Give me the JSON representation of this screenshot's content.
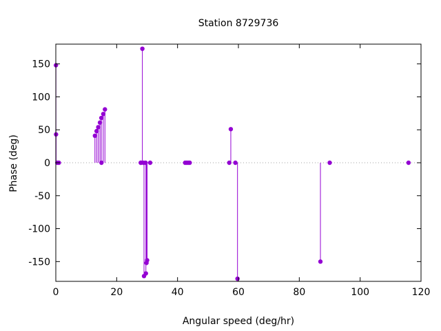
{
  "chart_data": {
    "type": "scatter",
    "title": "Station 8729736",
    "xlabel": "Angular speed (deg/hr)",
    "ylabel": "Phase (deg)",
    "xlim": [
      0,
      120
    ],
    "ylim": [
      -180,
      180
    ],
    "xticks": [
      0,
      20,
      40,
      60,
      80,
      100,
      120
    ],
    "yticks": [
      -150,
      -100,
      -50,
      0,
      50,
      100,
      150
    ],
    "xtick_labels": [
      "0",
      "20",
      "40",
      "60",
      "80",
      "100",
      "120"
    ],
    "ytick_labels": [
      "-150",
      "-100",
      "-50",
      "0",
      "50",
      "100",
      "150"
    ],
    "zero_line": true,
    "style": "impulses-with-points",
    "color": "#9400d3",
    "points": [
      {
        "x": 0.04,
        "y": 148
      },
      {
        "x": 0.08,
        "y": 43
      },
      {
        "x": 0.5,
        "y": 0
      },
      {
        "x": 1.0,
        "y": 0
      },
      {
        "x": 12.85,
        "y": 41
      },
      {
        "x": 13.4,
        "y": 48
      },
      {
        "x": 13.94,
        "y": 54
      },
      {
        "x": 14.5,
        "y": 61
      },
      {
        "x": 14.96,
        "y": 68
      },
      {
        "x": 15.0,
        "y": 0
      },
      {
        "x": 15.59,
        "y": 74
      },
      {
        "x": 16.14,
        "y": 81
      },
      {
        "x": 27.9,
        "y": 0
      },
      {
        "x": 28.0,
        "y": 0
      },
      {
        "x": 28.44,
        "y": 173
      },
      {
        "x": 28.8,
        "y": 0
      },
      {
        "x": 28.98,
        "y": -172
      },
      {
        "x": 29.5,
        "y": 0
      },
      {
        "x": 29.6,
        "y": -168
      },
      {
        "x": 29.8,
        "y": -152
      },
      {
        "x": 30.0,
        "y": -148
      },
      {
        "x": 31.0,
        "y": 0
      },
      {
        "x": 42.5,
        "y": 0
      },
      {
        "x": 43.0,
        "y": 0
      },
      {
        "x": 43.5,
        "y": 0
      },
      {
        "x": 44.0,
        "y": 0
      },
      {
        "x": 57.0,
        "y": 0
      },
      {
        "x": 57.5,
        "y": 51
      },
      {
        "x": 59.0,
        "y": 0
      },
      {
        "x": 59.7,
        "y": -176
      },
      {
        "x": 86.95,
        "y": -150
      },
      {
        "x": 90.0,
        "y": 0
      },
      {
        "x": 115.9,
        "y": 0
      }
    ]
  }
}
